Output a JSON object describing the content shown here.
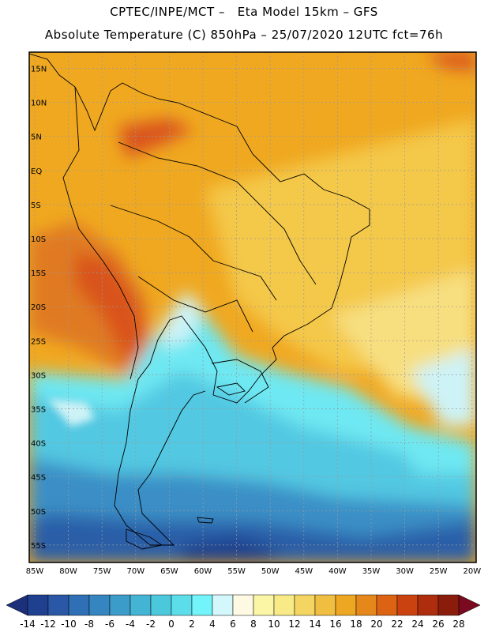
{
  "header": {
    "line1": "CPTEC/INPE/MCT –   Eta Model 15km – GFS",
    "line2": "Absolute Temperature (C) 850hPa – 25/07/2020 12UTC fct=76h"
  },
  "lat_labels": [
    "15N",
    "10N",
    "5N",
    "EQ",
    "5S",
    "10S",
    "15S",
    "20S",
    "25S",
    "30S",
    "35S",
    "40S",
    "45S",
    "50S",
    "55S"
  ],
  "lon_labels": [
    "85W",
    "80W",
    "75W",
    "70W",
    "65W",
    "60W",
    "55W",
    "50W",
    "45W",
    "40W",
    "35W",
    "30W",
    "25W",
    "20W"
  ],
  "colorbar": {
    "labels": [
      "-14",
      "-12",
      "-10",
      "-8",
      "-6",
      "-4",
      "-2",
      "0",
      "2",
      "4",
      "6",
      "8",
      "10",
      "12",
      "14",
      "16",
      "18",
      "20",
      "22",
      "24",
      "26",
      "28"
    ],
    "colors": [
      "#1f3f8f",
      "#2a58a6",
      "#2f6fb5",
      "#3585c0",
      "#3c9cc9",
      "#44b4d4",
      "#4cc8dc",
      "#5cdeea",
      "#73f4fa",
      "#d3f7fb",
      "#fdf9e3",
      "#fbf6a6",
      "#f8ea86",
      "#f4d561",
      "#f0be41",
      "#eda723",
      "#e6871c",
      "#dc6214",
      "#c9420f",
      "#ad2d0c",
      "#8a1c0c"
    ],
    "low_color": "#1c2f7a",
    "high_color": "#7a0a20"
  },
  "colors": {
    "warm_base": "#f0a820",
    "warm_light": "#f4c84a",
    "warm_pale": "#f7df80",
    "orange_dark": "#e07a20",
    "red_andes": "#d9531c",
    "cool_pale": "#cdf3f7",
    "cyan": "#6ee8f2",
    "cyan_mid": "#52c8e2",
    "blue_mid": "#3a8fc6",
    "blue_dark": "#2a5fa8",
    "blue_deep": "#1f3f8f"
  }
}
